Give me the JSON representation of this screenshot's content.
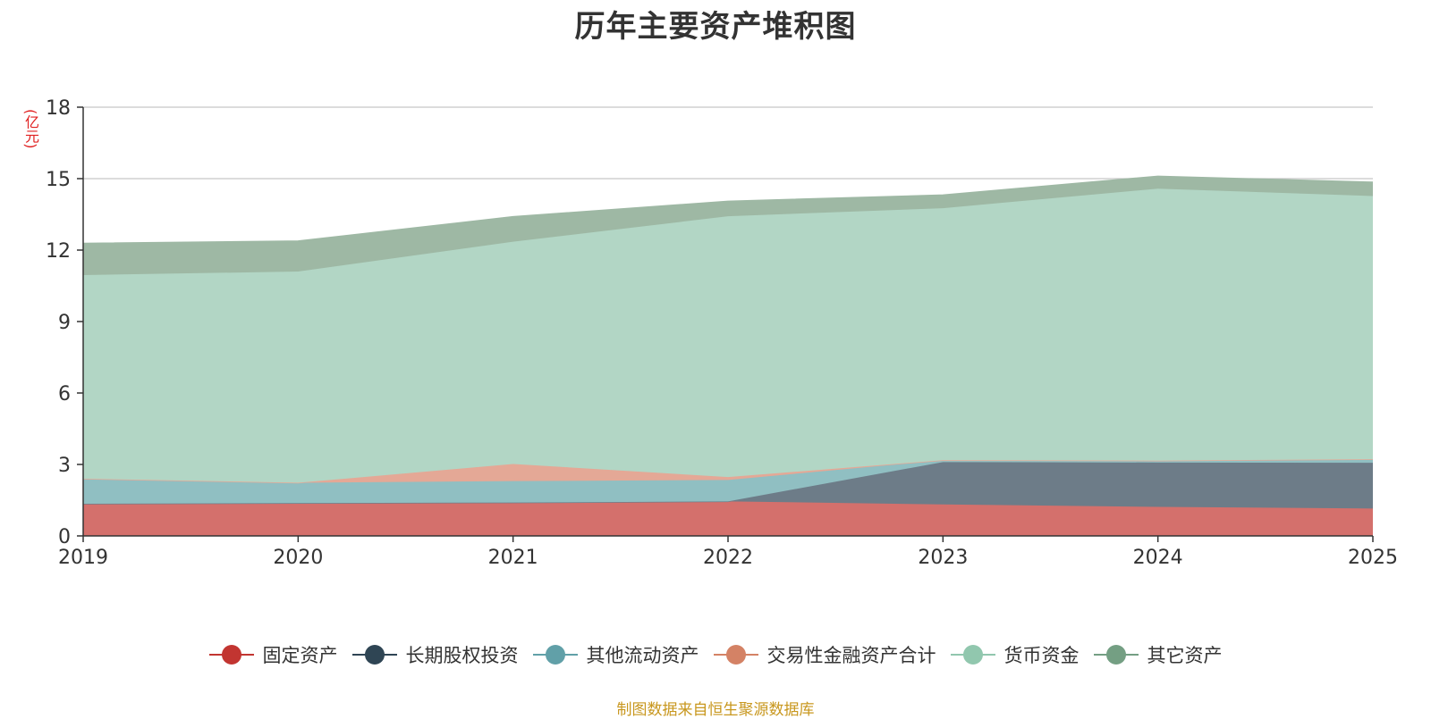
{
  "chart_data": {
    "type": "area",
    "title": "历年主要资产堆积图",
    "ylabel": "(亿元)",
    "xlabel": "",
    "x": [
      "2019",
      "2020",
      "2021",
      "2022",
      "2023",
      "2024",
      "2025"
    ],
    "ylim": [
      0,
      18
    ],
    "yticks": [
      0,
      3,
      6,
      9,
      12,
      15,
      18
    ],
    "stacked": true,
    "grid": true,
    "legend_position": "bottom",
    "series": [
      {
        "name": "固定资产",
        "color": "#c23531",
        "fill": "#d4706c",
        "values": [
          1.35,
          1.38,
          1.4,
          1.45,
          1.32,
          1.22,
          1.15
        ]
      },
      {
        "name": "长期股权投资",
        "color": "#2f4554",
        "fill": "#6d7c88",
        "values": [
          0,
          0,
          0,
          0,
          1.78,
          1.86,
          1.92
        ]
      },
      {
        "name": "其他流动资产",
        "color": "#61a0a8",
        "fill": "#90bfc2",
        "values": [
          1.05,
          0.85,
          0.9,
          0.9,
          0.08,
          0.08,
          0.15
        ]
      },
      {
        "name": "交易性金融资产合计",
        "color": "#d48265",
        "fill": "#e4a896",
        "values": [
          0,
          0,
          0.72,
          0.12,
          0,
          0,
          0
        ]
      },
      {
        "name": "货币资金",
        "color": "#91c7ae",
        "fill": "#b2d6c5",
        "values": [
          8.55,
          8.87,
          9.33,
          10.95,
          10.58,
          11.42,
          11.05
        ]
      },
      {
        "name": "其它资产",
        "color": "#749f83",
        "fill": "#9eb8a4",
        "values": [
          1.33,
          1.28,
          1.05,
          0.63,
          0.55,
          0.52,
          0.58
        ]
      }
    ],
    "source_note": "制图数据来自恒生聚源数据库"
  }
}
